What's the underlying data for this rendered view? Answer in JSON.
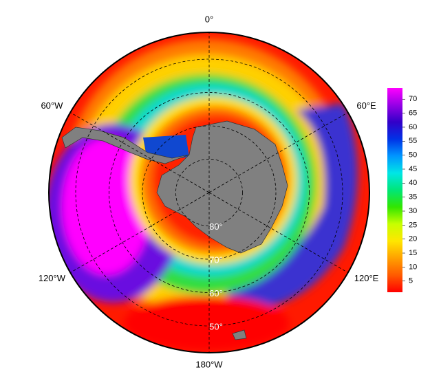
{
  "map": {
    "longitude_labels": [
      {
        "value": 0,
        "label": "0°"
      },
      {
        "value": 60,
        "label": "60°E"
      },
      {
        "value": 120,
        "label": "120°E"
      },
      {
        "value": 180,
        "label": "180°W"
      },
      {
        "value": -120,
        "label": "120°W"
      },
      {
        "value": -60,
        "label": "60°W"
      }
    ],
    "latitude_labels": [
      {
        "value": 80,
        "label": "80°"
      },
      {
        "value": 70,
        "label": "70°"
      },
      {
        "value": 60,
        "label": "60°"
      },
      {
        "value": 50,
        "label": "50°"
      }
    ]
  },
  "colorbar": {
    "clim": [
      1,
      74
    ],
    "ticks": [
      5,
      10,
      15,
      20,
      25,
      30,
      35,
      40,
      45,
      50,
      55,
      60,
      65,
      70
    ],
    "colors": [
      "#ff0000",
      "#ff5a00",
      "#ffa000",
      "#ffe600",
      "#c8ff00",
      "#32e600",
      "#00e678",
      "#00e6e6",
      "#0096ff",
      "#0032e6",
      "#3200c8",
      "#9600e6",
      "#ff00ff"
    ]
  }
}
